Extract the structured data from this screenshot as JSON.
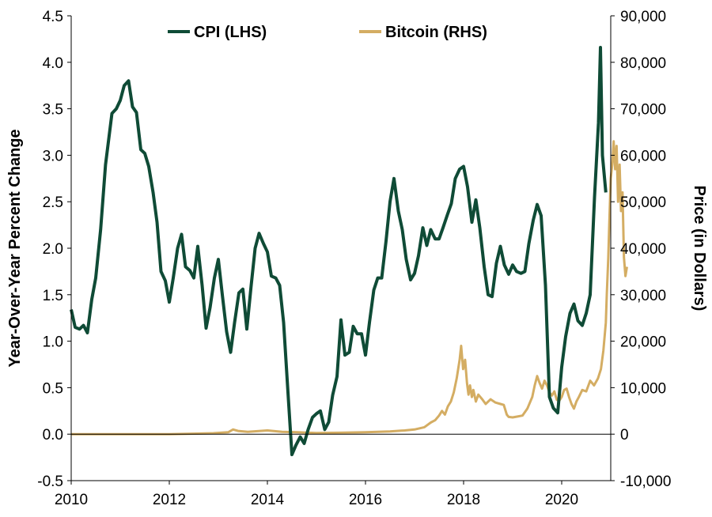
{
  "chart_data": {
    "type": "line",
    "title": "",
    "colors": {
      "cpi": "#0f4b36",
      "bitcoin": "#d4ad63"
    },
    "x_axis": {
      "range": [
        2010,
        2021
      ],
      "ticks": [
        2010,
        2012,
        2014,
        2016,
        2018,
        2020
      ],
      "tick_labels": [
        "2010",
        "2012",
        "2014",
        "2016",
        "2018",
        "2020"
      ]
    },
    "y_left": {
      "label": "Year-Over-Year Percent Change",
      "range": [
        -0.5,
        4.5
      ],
      "ticks": [
        -0.5,
        0,
        0.5,
        1,
        1.5,
        2,
        2.5,
        3,
        3.5,
        4,
        4.5
      ],
      "tick_labels": [
        "-0.5",
        "0.0",
        "0.5",
        "1.0",
        "1.5",
        "2.0",
        "2.5",
        "3.0",
        "3.5",
        "4.0",
        "4.5"
      ]
    },
    "y_right": {
      "label": "Price (in Dollars)",
      "range": [
        -10000,
        90000
      ],
      "ticks": [
        -10000,
        0,
        10000,
        20000,
        30000,
        40000,
        50000,
        60000,
        70000,
        80000,
        90000
      ],
      "tick_labels": [
        "-10,000",
        "0",
        "10,000",
        "20,000",
        "30,000",
        "40,000",
        "50,000",
        "60,000",
        "70,000",
        "80,000",
        "90,000"
      ]
    },
    "legend": {
      "placement": "top-center"
    },
    "series": [
      {
        "name": "CPI (LHS)",
        "axis": "left",
        "points": [
          [
            2010.0,
            1.34
          ],
          [
            2010.08,
            1.15
          ],
          [
            2010.17,
            1.13
          ],
          [
            2010.25,
            1.17
          ],
          [
            2010.33,
            1.09
          ],
          [
            2010.42,
            1.45
          ],
          [
            2010.5,
            1.68
          ],
          [
            2010.6,
            2.2
          ],
          [
            2010.7,
            2.9
          ],
          [
            2010.83,
            3.45
          ],
          [
            2010.92,
            3.5
          ],
          [
            2011.0,
            3.59
          ],
          [
            2011.08,
            3.75
          ],
          [
            2011.17,
            3.8
          ],
          [
            2011.25,
            3.52
          ],
          [
            2011.33,
            3.46
          ],
          [
            2011.42,
            3.06
          ],
          [
            2011.5,
            3.02
          ],
          [
            2011.58,
            2.88
          ],
          [
            2011.67,
            2.6
          ],
          [
            2011.75,
            2.28
          ],
          [
            2011.83,
            1.75
          ],
          [
            2011.92,
            1.65
          ],
          [
            2012.0,
            1.42
          ],
          [
            2012.08,
            1.68
          ],
          [
            2012.17,
            2.0
          ],
          [
            2012.25,
            2.15
          ],
          [
            2012.33,
            1.8
          ],
          [
            2012.42,
            1.76
          ],
          [
            2012.5,
            1.68
          ],
          [
            2012.58,
            2.02
          ],
          [
            2012.67,
            1.6
          ],
          [
            2012.75,
            1.14
          ],
          [
            2012.83,
            1.36
          ],
          [
            2012.92,
            1.68
          ],
          [
            2013.0,
            1.88
          ],
          [
            2013.08,
            1.5
          ],
          [
            2013.17,
            1.1
          ],
          [
            2013.25,
            0.88
          ],
          [
            2013.33,
            1.2
          ],
          [
            2013.42,
            1.52
          ],
          [
            2013.5,
            1.56
          ],
          [
            2013.58,
            1.13
          ],
          [
            2013.67,
            1.6
          ],
          [
            2013.75,
            2.0
          ],
          [
            2013.83,
            2.16
          ],
          [
            2013.92,
            2.05
          ],
          [
            2014.0,
            1.96
          ],
          [
            2014.08,
            1.7
          ],
          [
            2014.17,
            1.68
          ],
          [
            2014.25,
            1.6
          ],
          [
            2014.33,
            1.2
          ],
          [
            2014.42,
            0.45
          ],
          [
            2014.5,
            -0.22
          ],
          [
            2014.58,
            -0.12
          ],
          [
            2014.67,
            -0.03
          ],
          [
            2014.75,
            -0.1
          ],
          [
            2014.83,
            0.05
          ],
          [
            2014.92,
            0.18
          ],
          [
            2015.0,
            0.22
          ],
          [
            2015.08,
            0.25
          ],
          [
            2015.17,
            0.05
          ],
          [
            2015.25,
            0.13
          ],
          [
            2015.33,
            0.42
          ],
          [
            2015.42,
            0.62
          ],
          [
            2015.5,
            1.23
          ],
          [
            2015.58,
            0.85
          ],
          [
            2015.67,
            0.88
          ],
          [
            2015.75,
            1.16
          ],
          [
            2015.83,
            1.08
          ],
          [
            2015.92,
            1.08
          ],
          [
            2016.0,
            0.85
          ],
          [
            2016.08,
            1.2
          ],
          [
            2016.17,
            1.55
          ],
          [
            2016.25,
            1.68
          ],
          [
            2016.33,
            1.68
          ],
          [
            2016.42,
            2.08
          ],
          [
            2016.5,
            2.5
          ],
          [
            2016.58,
            2.75
          ],
          [
            2016.67,
            2.4
          ],
          [
            2016.75,
            2.2
          ],
          [
            2016.83,
            1.88
          ],
          [
            2016.92,
            1.66
          ],
          [
            2017.0,
            1.73
          ],
          [
            2017.08,
            1.92
          ],
          [
            2017.17,
            2.22
          ],
          [
            2017.25,
            2.03
          ],
          [
            2017.33,
            2.2
          ],
          [
            2017.42,
            2.1
          ],
          [
            2017.5,
            2.1
          ],
          [
            2017.58,
            2.22
          ],
          [
            2017.67,
            2.36
          ],
          [
            2017.75,
            2.48
          ],
          [
            2017.83,
            2.75
          ],
          [
            2017.92,
            2.85
          ],
          [
            2018.0,
            2.88
          ],
          [
            2018.08,
            2.66
          ],
          [
            2018.17,
            2.28
          ],
          [
            2018.25,
            2.52
          ],
          [
            2018.33,
            2.22
          ],
          [
            2018.42,
            1.8
          ],
          [
            2018.5,
            1.5
          ],
          [
            2018.58,
            1.48
          ],
          [
            2018.67,
            1.84
          ],
          [
            2018.75,
            2.02
          ],
          [
            2018.83,
            1.82
          ],
          [
            2018.92,
            1.72
          ],
          [
            2019.0,
            1.82
          ],
          [
            2019.08,
            1.75
          ],
          [
            2019.17,
            1.73
          ],
          [
            2019.25,
            1.75
          ],
          [
            2019.33,
            2.05
          ],
          [
            2019.42,
            2.3
          ],
          [
            2019.5,
            2.47
          ],
          [
            2019.58,
            2.35
          ],
          [
            2019.67,
            1.6
          ],
          [
            2019.75,
            0.4
          ],
          [
            2019.83,
            0.28
          ],
          [
            2019.92,
            0.23
          ],
          [
            2020.0,
            0.72
          ],
          [
            2020.08,
            1.05
          ],
          [
            2020.17,
            1.3
          ],
          [
            2020.25,
            1.4
          ],
          [
            2020.33,
            1.22
          ],
          [
            2020.42,
            1.17
          ],
          [
            2020.5,
            1.3
          ],
          [
            2020.58,
            1.5
          ],
          [
            2020.67,
            2.55
          ],
          [
            2020.75,
            3.35
          ],
          [
            2020.79,
            4.16
          ],
          [
            2020.83,
            3.0
          ],
          [
            2020.9,
            2.6
          ]
        ]
      },
      {
        "name": "Bitcoin (RHS)",
        "axis": "right",
        "points": [
          [
            2010.0,
            0
          ],
          [
            2011.0,
            0
          ],
          [
            2012.0,
            0
          ],
          [
            2012.9,
            200
          ],
          [
            2013.2,
            400
          ],
          [
            2013.3,
            1000
          ],
          [
            2013.4,
            700
          ],
          [
            2013.6,
            500
          ],
          [
            2014.0,
            800
          ],
          [
            2014.3,
            500
          ],
          [
            2014.6,
            400
          ],
          [
            2015.0,
            250
          ],
          [
            2015.5,
            300
          ],
          [
            2016.0,
            400
          ],
          [
            2016.5,
            600
          ],
          [
            2016.8,
            800
          ],
          [
            2017.0,
            1000
          ],
          [
            2017.2,
            1500
          ],
          [
            2017.33,
            2500
          ],
          [
            2017.42,
            3000
          ],
          [
            2017.5,
            4000
          ],
          [
            2017.56,
            5000
          ],
          [
            2017.62,
            4200
          ],
          [
            2017.68,
            6000
          ],
          [
            2017.74,
            7000
          ],
          [
            2017.8,
            9000
          ],
          [
            2017.86,
            12000
          ],
          [
            2017.92,
            16000
          ],
          [
            2017.95,
            19000
          ],
          [
            2017.99,
            14000
          ],
          [
            2018.03,
            16000
          ],
          [
            2018.07,
            11000
          ],
          [
            2018.1,
            8500
          ],
          [
            2018.13,
            10500
          ],
          [
            2018.17,
            8000
          ],
          [
            2018.2,
            9500
          ],
          [
            2018.25,
            7000
          ],
          [
            2018.3,
            8500
          ],
          [
            2018.38,
            7500
          ],
          [
            2018.45,
            6500
          ],
          [
            2018.55,
            7500
          ],
          [
            2018.65,
            6800
          ],
          [
            2018.75,
            6500
          ],
          [
            2018.82,
            6300
          ],
          [
            2018.88,
            4200
          ],
          [
            2018.92,
            3700
          ],
          [
            2019.0,
            3600
          ],
          [
            2019.1,
            3800
          ],
          [
            2019.2,
            4000
          ],
          [
            2019.3,
            5500
          ],
          [
            2019.4,
            8000
          ],
          [
            2019.45,
            10500
          ],
          [
            2019.5,
            12500
          ],
          [
            2019.55,
            11000
          ],
          [
            2019.6,
            9800
          ],
          [
            2019.65,
            11500
          ],
          [
            2019.7,
            10500
          ],
          [
            2019.75,
            9000
          ],
          [
            2019.8,
            8300
          ],
          [
            2019.85,
            9200
          ],
          [
            2019.9,
            7400
          ],
          [
            2019.95,
            7200
          ],
          [
            2020.0,
            8000
          ],
          [
            2020.05,
            9500
          ],
          [
            2020.1,
            9800
          ],
          [
            2020.15,
            8000
          ],
          [
            2020.2,
            6500
          ],
          [
            2020.25,
            5500
          ],
          [
            2020.3,
            7000
          ],
          [
            2020.35,
            8000
          ],
          [
            2020.42,
            9500
          ],
          [
            2020.5,
            9200
          ],
          [
            2020.58,
            11500
          ],
          [
            2020.66,
            10500
          ],
          [
            2020.74,
            12000
          ],
          [
            2020.8,
            14000
          ],
          [
            2020.85,
            18000
          ],
          [
            2020.9,
            24000
          ],
          [
            2020.92,
            30000
          ],
          [
            2020.95,
            38000
          ],
          [
            2020.97,
            45000
          ],
          [
            2021.0,
            55000
          ],
          [
            2021.03,
            58000
          ],
          [
            2021.06,
            63000
          ],
          [
            2021.09,
            57000
          ],
          [
            2021.12,
            62000
          ],
          [
            2021.15,
            50000
          ],
          [
            2021.18,
            58000
          ],
          [
            2021.21,
            48000
          ],
          [
            2021.24,
            52000
          ],
          [
            2021.27,
            38000
          ],
          [
            2021.3,
            34000
          ],
          [
            2021.33,
            36000
          ]
        ]
      }
    ]
  }
}
